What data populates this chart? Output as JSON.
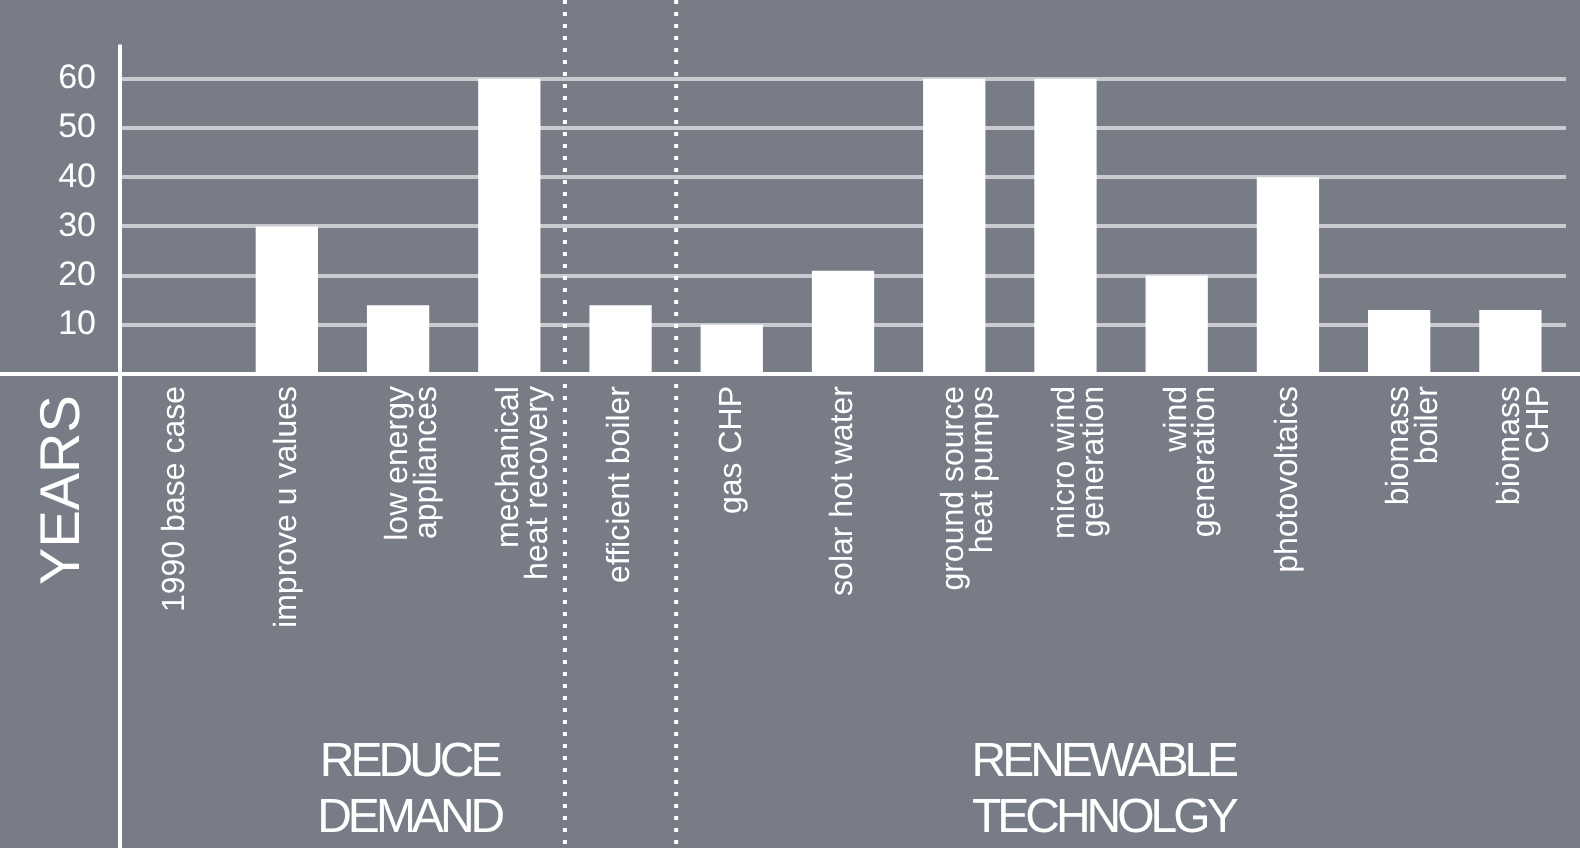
{
  "chart_data": {
    "type": "bar",
    "ylabel": "YEARS",
    "categories": [
      "1990 base case",
      "improve u values",
      "low energy\nappliances",
      "mechanical\nheat recovery",
      "efficient boiler",
      "gas CHP",
      "solar hot water",
      "ground source\nheat pumps",
      "micro wind\ngeneration",
      "wind\ngeneration",
      "photovoltaics",
      "biomass\nboiler",
      "biomass\nCHP"
    ],
    "values": [
      0,
      30,
      14,
      60,
      14,
      10,
      21,
      60,
      60,
      20,
      40,
      13,
      13
    ],
    "color": "#ffffff",
    "ylim": [
      0,
      67
    ],
    "yticks": [
      10,
      20,
      30,
      40,
      50,
      60
    ],
    "grid": "y",
    "legend": false,
    "annotations": [
      "REDUCE\nDEMAND",
      "RENEWABLE\nTECHNOLGY"
    ]
  }
}
